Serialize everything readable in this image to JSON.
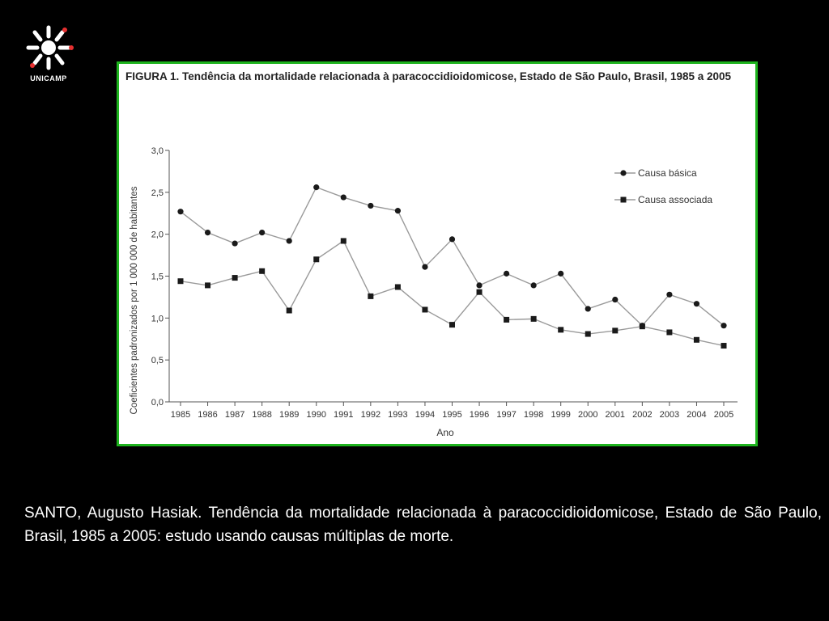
{
  "logo": {
    "text": "UNICAMP"
  },
  "figure": {
    "title": "FIGURA 1. Tendência da mortalidade relacionada à paracoccidioidomicose, Estado de São Paulo, Brasil, 1985 a 2005"
  },
  "chart_data": {
    "type": "line",
    "title": "FIGURA 1. Tendência da mortalidade relacionada à paracoccidioidomicose, Estado de São Paulo, Brasil, 1985 a 2005",
    "xlabel": "Ano",
    "ylabel": "Coeficientes padronizados por 1 000 000 de habitantes",
    "ylim": [
      0,
      3.0
    ],
    "yticks": [
      "0,0",
      "0,5",
      "1,0",
      "1,5",
      "2,0",
      "2,5",
      "3,0"
    ],
    "categories": [
      "1985",
      "1986",
      "1987",
      "1988",
      "1989",
      "1990",
      "1991",
      "1992",
      "1993",
      "1994",
      "1995",
      "1996",
      "1997",
      "1998",
      "1999",
      "2000",
      "2001",
      "2002",
      "2003",
      "2004",
      "2005"
    ],
    "legend_position": "top-right",
    "grid": false,
    "series": [
      {
        "name": "Causa básica",
        "marker": "circle",
        "values": [
          2.27,
          2.02,
          1.89,
          2.02,
          1.92,
          2.56,
          2.44,
          2.34,
          2.28,
          1.61,
          1.94,
          1.39,
          1.53,
          1.39,
          1.53,
          1.11,
          1.22,
          0.91,
          1.28,
          1.17,
          0.91
        ]
      },
      {
        "name": "Causa associada",
        "marker": "square",
        "values": [
          1.44,
          1.39,
          1.48,
          1.56,
          1.09,
          1.7,
          1.92,
          1.26,
          1.37,
          1.1,
          0.92,
          1.31,
          0.98,
          0.99,
          0.86,
          0.81,
          0.85,
          0.9,
          0.83,
          0.74,
          0.67
        ]
      }
    ],
    "colors": {
      "line": "#9a9a9a",
      "marker": "#1a1a1a",
      "axis": "#555555",
      "text": "#333333"
    }
  },
  "caption": {
    "text": "SANTO, Augusto Hasiak. Tendência da mortalidade relacionada à paracoccidioidomicose, Estado de São Paulo, Brasil, 1985 a 2005: estudo usando causas múltiplas de morte."
  }
}
